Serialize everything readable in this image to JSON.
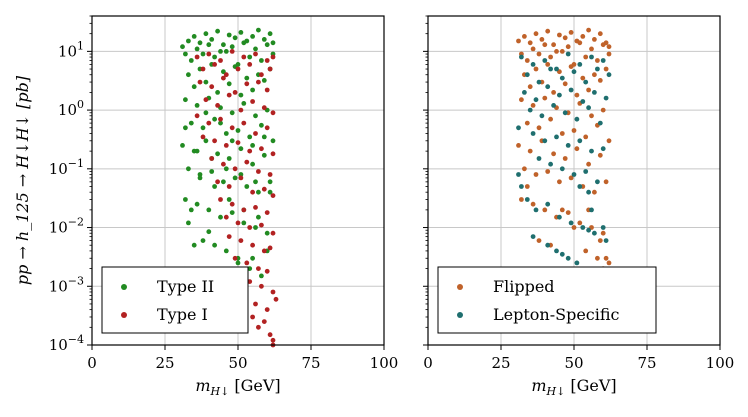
{
  "chart_data": [
    {
      "type": "scatter",
      "xlabel": "m_{H↓} [GeV]",
      "ylabel": "pp → h_125 → H↓H↓ [pb]",
      "xlim": [
        0,
        100
      ],
      "ylim": [
        0.0001,
        40
      ],
      "yscale": "log",
      "grid": true,
      "legend_position": "lower-left",
      "xticks": [
        "0",
        "25",
        "50",
        "75",
        "100"
      ],
      "yticks": [
        "10^-4",
        "10^-3",
        "10^-2",
        "10^-1",
        "10^0",
        "10^1"
      ],
      "series": [
        {
          "name": "Type II",
          "color": "#228b22",
          "x": [
            31,
            33,
            35,
            37,
            39,
            41,
            43,
            45,
            47,
            49,
            51,
            53,
            55,
            57,
            59,
            61,
            62,
            32,
            36,
            40,
            44,
            48,
            52,
            56,
            60,
            34,
            38,
            42,
            46,
            50,
            54,
            58,
            62,
            33,
            37,
            41,
            45,
            49,
            53,
            57,
            61,
            35,
            39,
            43,
            47,
            51,
            55,
            59,
            32,
            36,
            40,
            44,
            48,
            52,
            56,
            60,
            34,
            38,
            42,
            46,
            50,
            54,
            58,
            62,
            31,
            35,
            39,
            43,
            47,
            51,
            55,
            59,
            33,
            37,
            41,
            45,
            49,
            53,
            57,
            61,
            32,
            36,
            40,
            44,
            48,
            52,
            56,
            60,
            38,
            42,
            46,
            50,
            54,
            58,
            34,
            33,
            35,
            40,
            45,
            50,
            55,
            60,
            37,
            42,
            47,
            52,
            57,
            36,
            41,
            46,
            51,
            56,
            61,
            32,
            48,
            55,
            44,
            39,
            59
          ],
          "y": [
            12,
            15,
            18,
            14,
            20,
            16,
            22,
            13,
            19,
            17,
            21,
            15,
            18,
            23,
            16,
            20,
            14,
            9,
            11,
            13,
            10,
            12,
            14,
            11,
            13,
            7,
            9,
            8,
            10,
            6,
            8,
            7,
            9,
            4,
            5,
            6,
            4.5,
            5.5,
            3.5,
            4,
            5,
            2.5,
            3,
            2,
            2.8,
            1.8,
            2.2,
            3.2,
            1.5,
            1.2,
            1.6,
            1.1,
            0.9,
            1.3,
            0.8,
            1.0,
            0.6,
            0.5,
            0.7,
            0.4,
            0.45,
            0.35,
            0.55,
            0.3,
            0.25,
            0.2,
            0.3,
            0.18,
            0.15,
            0.22,
            0.12,
            0.17,
            0.1,
            0.08,
            0.09,
            0.06,
            0.07,
            0.05,
            0.04,
            0.06,
            0.03,
            0.025,
            0.02,
            0.015,
            0.018,
            0.012,
            0.01,
            0.008,
            0.006,
            0.005,
            0.004,
            0.003,
            0.002,
            0.0015,
            0.02,
            0.012,
            0.005,
            0.0085,
            0.0015,
            0.0025,
            0.003,
            0.004,
            0.07,
            0.05,
            0.03,
            0.02,
            0.015,
            0.2,
            0.15,
            0.1,
            0.08,
            0.06,
            0.04,
            0.5,
            0.3,
            0.25,
            0.6,
            0.9,
            0.35
          ]
        },
        {
          "name": "Type I",
          "color": "#b22222",
          "x": [
            36,
            40,
            44,
            48,
            52,
            56,
            60,
            62,
            38,
            42,
            46,
            50,
            54,
            58,
            61,
            37,
            41,
            45,
            49,
            53,
            57,
            60,
            39,
            43,
            47,
            51,
            55,
            59,
            62,
            36,
            40,
            44,
            48,
            52,
            56,
            60,
            38,
            42,
            46,
            50,
            54,
            58,
            62,
            41,
            45,
            49,
            53,
            57,
            61,
            43,
            47,
            51,
            55,
            59,
            62,
            44,
            48,
            52,
            56,
            60,
            46,
            50,
            54,
            58,
            62,
            47,
            51,
            55,
            59,
            61,
            49,
            53,
            57,
            60,
            50,
            54,
            58,
            62,
            52,
            56,
            60,
            55,
            59,
            57,
            61,
            62,
            62,
            63
          ],
          "y": [
            8,
            9,
            7,
            10,
            8,
            9,
            7,
            8,
            5,
            6,
            4,
            5,
            6,
            4,
            5,
            3,
            2.5,
            3.5,
            2,
            2.8,
            3,
            2.2,
            1.5,
            1.2,
            1.8,
            1,
            1.4,
            1.1,
            0.9,
            0.8,
            0.6,
            0.7,
            0.5,
            0.6,
            0.4,
            0.5,
            0.35,
            0.3,
            0.25,
            0.28,
            0.2,
            0.22,
            0.18,
            0.15,
            0.12,
            0.1,
            0.13,
            0.09,
            0.08,
            0.06,
            0.05,
            0.07,
            0.04,
            0.045,
            0.035,
            0.03,
            0.025,
            0.02,
            0.022,
            0.018,
            0.015,
            0.012,
            0.01,
            0.011,
            0.008,
            0.007,
            0.006,
            0.005,
            0.004,
            0.0045,
            0.003,
            0.0025,
            0.002,
            0.0018,
            0.0015,
            0.0012,
            0.001,
            0.0008,
            0.0006,
            0.0005,
            0.0004,
            0.0003,
            0.00025,
            0.0002,
            0.00015,
            0.00012,
            0.0001,
            0.0006
          ]
        }
      ]
    },
    {
      "type": "scatter",
      "xlabel": "m_{H↓} [GeV]",
      "xlim": [
        0,
        100
      ],
      "ylim": [
        0.0001,
        40
      ],
      "yscale": "log",
      "grid": true,
      "legend_position": "lower-left",
      "xticks": [
        "0",
        "25",
        "50",
        "75",
        "100"
      ],
      "series": [
        {
          "name": "Flipped",
          "color": "#c0622a",
          "x": [
            31,
            33,
            35,
            37,
            39,
            41,
            43,
            45,
            47,
            49,
            51,
            53,
            55,
            57,
            59,
            61,
            62,
            32,
            36,
            40,
            44,
            48,
            52,
            56,
            60,
            34,
            38,
            42,
            46,
            50,
            54,
            58,
            62,
            33,
            37,
            41,
            45,
            49,
            53,
            57,
            61,
            35,
            39,
            43,
            47,
            51,
            55,
            59,
            32,
            36,
            40,
            44,
            48,
            52,
            56,
            60,
            34,
            38,
            42,
            46,
            50,
            54,
            58,
            62,
            31,
            35,
            39,
            43,
            47,
            51,
            55,
            59,
            33,
            37,
            41,
            45,
            49,
            53,
            57,
            61,
            32,
            36,
            40,
            44,
            48,
            52,
            56,
            60,
            38,
            42,
            46,
            50,
            54,
            58,
            34,
            60,
            62,
            61,
            59,
            57,
            55
          ],
          "y": [
            15,
            18,
            14,
            20,
            16,
            22,
            13,
            19,
            17,
            21,
            15,
            18,
            23,
            16,
            20,
            14,
            12,
            9,
            11,
            13,
            10,
            12,
            14,
            11,
            13,
            7,
            9,
            8,
            10,
            6,
            8,
            7,
            9,
            4,
            5,
            6,
            4.5,
            5.5,
            3.5,
            4,
            5,
            2.5,
            3,
            2,
            2.8,
            1.8,
            2.2,
            3.2,
            1.5,
            1.2,
            1.6,
            1.1,
            0.9,
            1.3,
            0.8,
            1.0,
            0.6,
            0.5,
            0.7,
            0.4,
            0.45,
            0.35,
            0.55,
            0.3,
            0.25,
            0.2,
            0.3,
            0.18,
            0.15,
            0.22,
            0.12,
            0.17,
            0.1,
            0.08,
            0.09,
            0.06,
            0.07,
            0.05,
            0.04,
            0.06,
            0.03,
            0.025,
            0.02,
            0.015,
            0.018,
            0.012,
            0.01,
            0.008,
            0.006,
            0.005,
            0.02,
            0.01,
            0.004,
            0.003,
            0.05,
            0.002,
            0.0025,
            0.003,
            0.006,
            0.0015,
            0.02
          ]
        },
        {
          "name": "Lepton-Specific",
          "color": "#1f6f6f",
          "x": [
            32,
            36,
            40,
            44,
            48,
            52,
            56,
            60,
            34,
            38,
            42,
            46,
            50,
            54,
            58,
            62,
            33,
            37,
            41,
            45,
            49,
            53,
            57,
            61,
            35,
            39,
            43,
            47,
            51,
            55,
            59,
            31,
            36,
            40,
            44,
            48,
            52,
            56,
            60,
            38,
            42,
            46,
            50,
            54,
            58,
            32,
            34,
            37,
            41,
            45,
            49,
            53,
            57,
            61,
            44,
            48,
            52,
            56,
            60,
            36,
            41,
            46,
            51,
            55,
            50,
            57,
            31,
            55
          ],
          "y": [
            8,
            6,
            7,
            5,
            9,
            6,
            8,
            7,
            4,
            3,
            5,
            3.5,
            4.5,
            3,
            5,
            4,
            2,
            1.5,
            2.5,
            1.8,
            2.2,
            1.4,
            2.0,
            1.6,
            1.0,
            0.8,
            1.2,
            0.9,
            0.7,
            1.1,
            0.6,
            0.5,
            0.4,
            0.3,
            0.35,
            0.25,
            0.3,
            0.2,
            0.22,
            0.15,
            0.12,
            0.1,
            0.08,
            0.09,
            0.06,
            0.05,
            0.03,
            0.02,
            0.025,
            0.015,
            0.012,
            0.01,
            0.008,
            0.006,
            0.004,
            0.003,
            0.05,
            0.02,
            0.01,
            0.007,
            0.005,
            0.0035,
            0.0025,
            0.04,
            0.0015,
            0.0002,
            0.08,
            0.009
          ]
        }
      ]
    }
  ]
}
